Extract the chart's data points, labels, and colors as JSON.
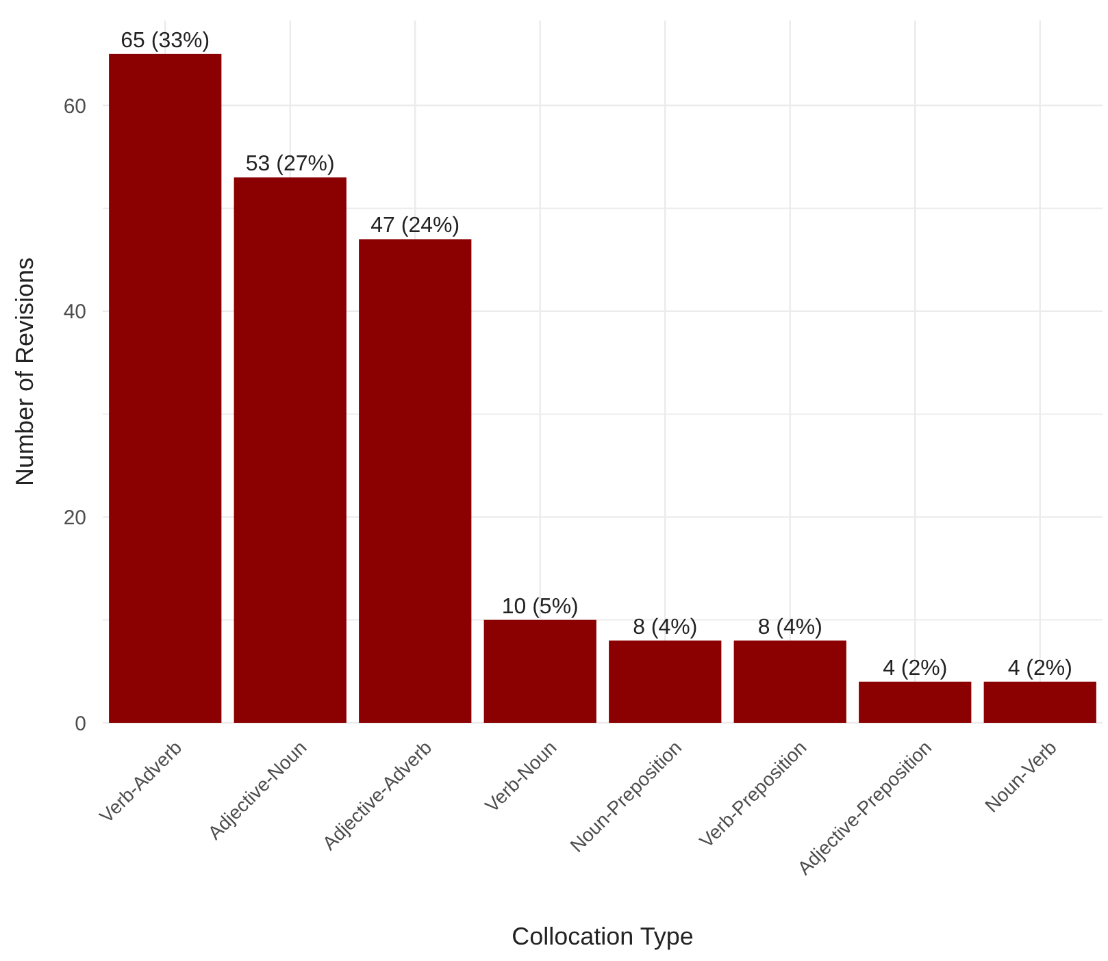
{
  "chart_data": {
    "type": "bar",
    "xlabel": "Collocation Type",
    "ylabel": "Number of Revisions",
    "categories": [
      "Verb-Adverb",
      "Adjective-Noun",
      "Adjective-Adverb",
      "Verb-Noun",
      "Noun-Preposition",
      "Verb-Preposition",
      "Adjective-Preposition",
      "Noun-Verb"
    ],
    "values": [
      65,
      53,
      47,
      10,
      8,
      8,
      4,
      4
    ],
    "value_labels": [
      "65 (33%)",
      "53 (27%)",
      "47 (24%)",
      "10 (5%)",
      "8 (4%)",
      "8 (4%)",
      "4 (2%)",
      "4 (2%)"
    ],
    "color": "#8b0000",
    "ylim": [
      0,
      68.25
    ],
    "yticks": [
      0,
      {
        "value": 10,
        "label": null
      },
      20,
      {
        "value": 30,
        "label": null
      },
      40,
      {
        "value": 50,
        "label": null
      },
      60
    ],
    "grid": true
  }
}
